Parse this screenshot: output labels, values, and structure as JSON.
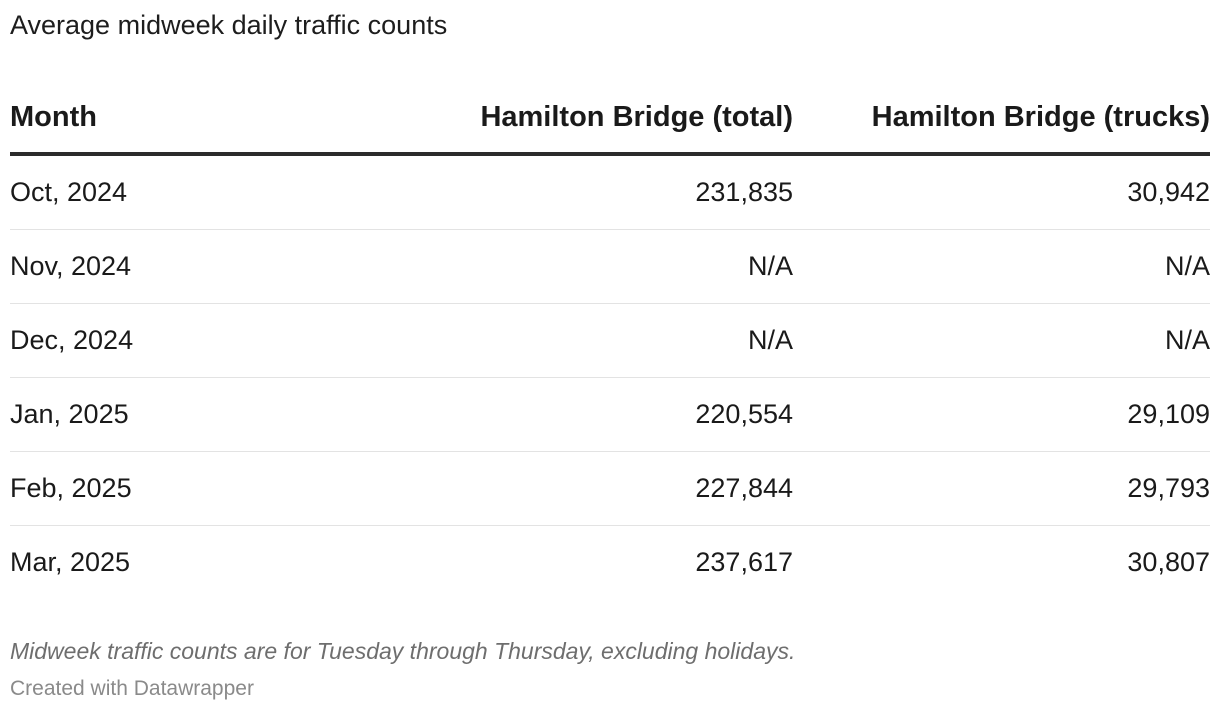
{
  "chart_data": {
    "type": "table",
    "title": "Average midweek daily traffic counts",
    "columns": [
      "Month",
      "Hamilton Bridge (total)",
      "Hamilton Bridge (trucks)"
    ],
    "rows": [
      [
        "Oct, 2024",
        "231,835",
        "30,942"
      ],
      [
        "Nov, 2024",
        "N/A",
        "N/A"
      ],
      [
        "Dec, 2024",
        "N/A",
        "N/A"
      ],
      [
        "Jan, 2025",
        "220,554",
        "29,109"
      ],
      [
        "Feb, 2025",
        "227,844",
        "29,793"
      ],
      [
        "Mar, 2025",
        "237,617",
        "30,807"
      ]
    ],
    "notes": "Midweek traffic counts are for Tuesday through Thursday, excluding holidays.",
    "credit": "Created with Datawrapper"
  },
  "colors": {
    "header_rule": "#2b2b2b",
    "row_rule": "#e3e3e3",
    "notes_text": "#6e6e6e"
  }
}
